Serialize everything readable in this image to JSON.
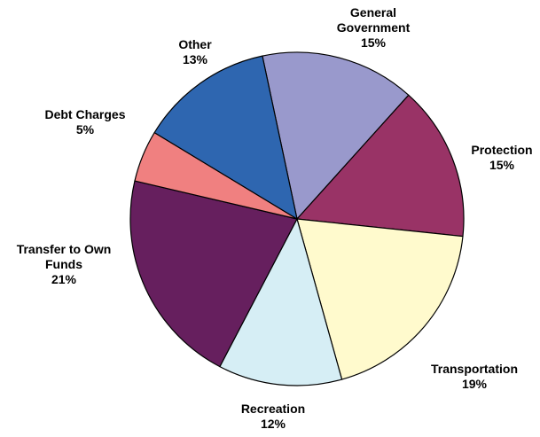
{
  "chart_data": {
    "type": "pie",
    "title": "",
    "slices": [
      {
        "label_lines": [
          "General",
          "Government"
        ],
        "value": 15,
        "value_label": "15%",
        "color": "#9999CC"
      },
      {
        "label_lines": [
          "Protection"
        ],
        "value": 15,
        "value_label": "15%",
        "color": "#993366"
      },
      {
        "label_lines": [
          "Transportation"
        ],
        "value": 19,
        "value_label": "19%",
        "color": "#FFFACD"
      },
      {
        "label_lines": [
          "Recreation"
        ],
        "value": 12,
        "value_label": "12%",
        "color": "#D6EEF5"
      },
      {
        "label_lines": [
          "Transfer to Own",
          "Funds"
        ],
        "value": 21,
        "value_label": "21%",
        "color": "#661F5E"
      },
      {
        "label_lines": [
          "Debt Charges"
        ],
        "value": 5,
        "value_label": "5%",
        "color": "#F08080"
      },
      {
        "label_lines": [
          "Other"
        ],
        "value": 13,
        "value_label": "13%",
        "color": "#2E66B0"
      }
    ]
  }
}
